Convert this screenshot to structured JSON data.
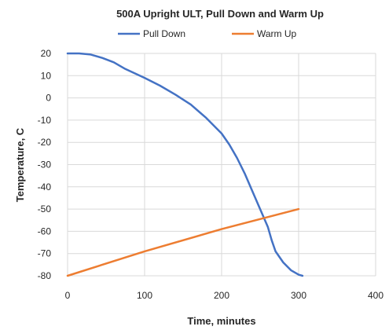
{
  "chart_data": {
    "type": "line",
    "title": "500A Upright ULT, Pull Down and Warm Up",
    "xlabel": "Time, minutes",
    "ylabel": "Temperature, C",
    "xlim": [
      0,
      400
    ],
    "ylim": [
      -80,
      20
    ],
    "x_ticks": [
      0,
      100,
      200,
      300,
      400
    ],
    "y_ticks": [
      20,
      10,
      0,
      -10,
      -20,
      -30,
      -40,
      -50,
      -60,
      -70,
      -80
    ],
    "grid": true,
    "legend_position": "top",
    "series": [
      {
        "name": "Pull Down",
        "color": "#4472c4",
        "points": [
          [
            0,
            20
          ],
          [
            15,
            20
          ],
          [
            30,
            19.5
          ],
          [
            45,
            18
          ],
          [
            60,
            16
          ],
          [
            75,
            13
          ],
          [
            100,
            9
          ],
          [
            120,
            5.5
          ],
          [
            140,
            1.5
          ],
          [
            160,
            -3
          ],
          [
            180,
            -9
          ],
          [
            200,
            -16
          ],
          [
            210,
            -21
          ],
          [
            220,
            -27
          ],
          [
            230,
            -34
          ],
          [
            240,
            -42
          ],
          [
            250,
            -50
          ],
          [
            260,
            -58
          ],
          [
            265,
            -64
          ],
          [
            270,
            -69
          ],
          [
            280,
            -74
          ],
          [
            290,
            -77.5
          ],
          [
            300,
            -79.5
          ],
          [
            305,
            -80
          ]
        ]
      },
      {
        "name": "Warm Up",
        "color": "#ed7d31",
        "points": [
          [
            0,
            -80
          ],
          [
            100,
            -69
          ],
          [
            200,
            -59
          ],
          [
            300,
            -50
          ]
        ]
      }
    ]
  }
}
